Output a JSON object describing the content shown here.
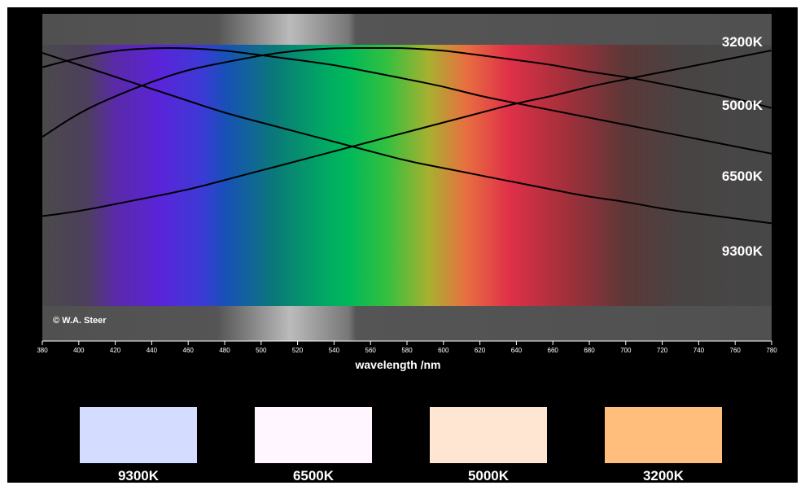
{
  "chart_data": {
    "type": "line",
    "title": "",
    "xlabel": "wavelength /nm",
    "ylabel": "",
    "xlim": [
      380,
      780
    ],
    "x_ticks": [
      380,
      400,
      420,
      440,
      460,
      480,
      500,
      520,
      540,
      560,
      580,
      600,
      620,
      640,
      660,
      680,
      700,
      720,
      740,
      760,
      780
    ],
    "grid": false,
    "background": "visible spectrum gradient",
    "series": [
      {
        "name": "3200K",
        "x": [
          380,
          400,
          420,
          440,
          460,
          480,
          500,
          520,
          540,
          560,
          580,
          600,
          620,
          640,
          660,
          680,
          700,
          720,
          740,
          760,
          780
        ],
        "y": [
          0.3,
          0.32,
          0.35,
          0.38,
          0.41,
          0.45,
          0.49,
          0.53,
          0.57,
          0.61,
          0.65,
          0.69,
          0.73,
          0.77,
          0.8,
          0.84,
          0.87,
          0.9,
          0.93,
          0.96,
          0.99
        ],
        "color": "#000000"
      },
      {
        "name": "5000K",
        "x": [
          380,
          400,
          420,
          440,
          460,
          480,
          500,
          520,
          540,
          560,
          580,
          600,
          620,
          640,
          660,
          680,
          700,
          720,
          740,
          760,
          780
        ],
        "y": [
          0.63,
          0.73,
          0.8,
          0.86,
          0.91,
          0.94,
          0.97,
          0.99,
          1.0,
          1.0,
          1.0,
          0.99,
          0.97,
          0.95,
          0.93,
          0.9,
          0.88,
          0.85,
          0.82,
          0.79,
          0.75
        ],
        "color": "#000000"
      },
      {
        "name": "6500K",
        "x": [
          380,
          400,
          420,
          440,
          460,
          480,
          500,
          520,
          540,
          560,
          580,
          600,
          620,
          640,
          660,
          680,
          700,
          720,
          740,
          760,
          780
        ],
        "y": [
          0.92,
          0.96,
          0.99,
          1.0,
          1.0,
          0.99,
          0.97,
          0.95,
          0.93,
          0.9,
          0.87,
          0.84,
          0.8,
          0.77,
          0.74,
          0.71,
          0.68,
          0.65,
          0.62,
          0.59,
          0.56
        ],
        "color": "#000000"
      },
      {
        "name": "9300K",
        "x": [
          380,
          400,
          420,
          440,
          460,
          480,
          500,
          520,
          540,
          560,
          580,
          600,
          620,
          640,
          660,
          680,
          700,
          720,
          740,
          760,
          780
        ],
        "y": [
          0.98,
          0.93,
          0.88,
          0.83,
          0.78,
          0.73,
          0.69,
          0.65,
          0.61,
          0.57,
          0.53,
          0.5,
          0.47,
          0.44,
          0.41,
          0.38,
          0.36,
          0.33,
          0.31,
          0.29,
          0.27
        ],
        "color": "#000000"
      }
    ],
    "curve_labels": [
      "3200K",
      "5000K",
      "6500K",
      "9300K"
    ],
    "annotations": [
      "© W.A. Steer"
    ]
  },
  "swatches": [
    {
      "label": "9300K",
      "color": "#d4dcff"
    },
    {
      "label": "6500K",
      "color": "#fff6ff"
    },
    {
      "label": "5000K",
      "color": "#ffe6d2"
    },
    {
      "label": "3200K",
      "color": "#ffbe7c"
    }
  ]
}
